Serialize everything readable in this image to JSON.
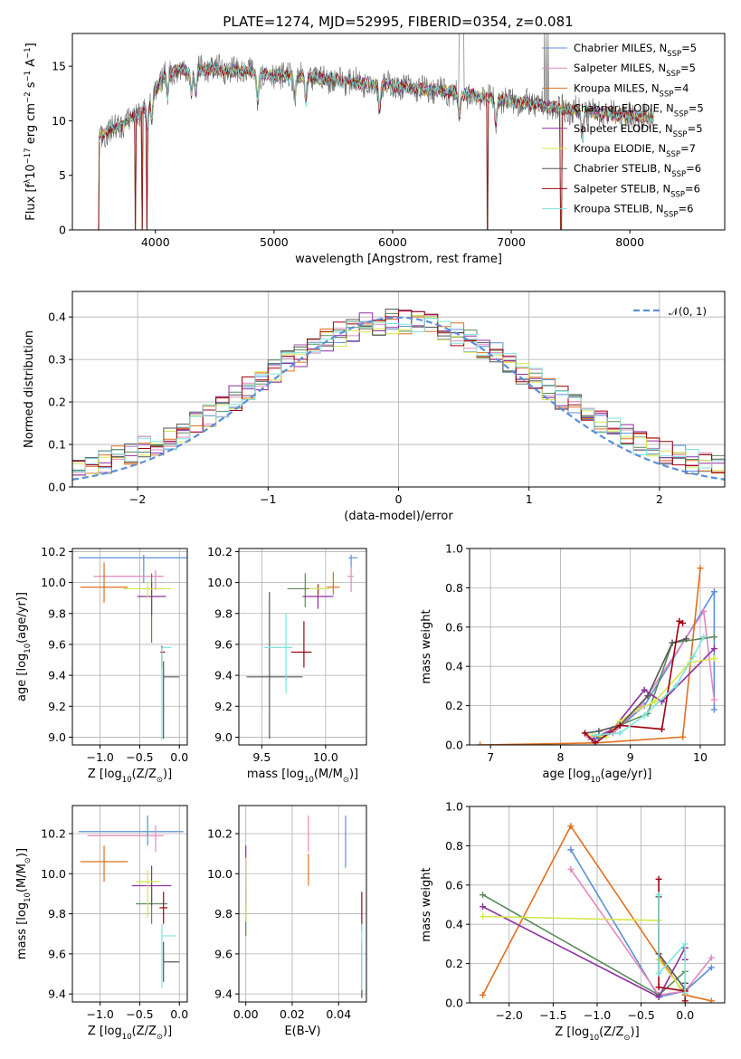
{
  "title": "PLATE=1274, MJD=52995, FIBERID=0354, z=0.081",
  "colors": {
    "Chabrier MILES": "#5b8fd9",
    "Salpeter MILES": "#e389bd",
    "Kroupa MILES": "#e0701e",
    "Chabrier ELODIE": "#5b8a5b",
    "Salpeter ELODIE": "#8e2ea3",
    "Kroupa ELODIE": "#d6e84a",
    "Chabrier STELIB": "#555555",
    "Salpeter STELIB": "#a00010",
    "Kroupa STELIB": "#7fe3dd"
  },
  "legend": [
    {
      "name": "Chabrier MILES",
      "n": "5"
    },
    {
      "name": "Salpeter MILES",
      "n": "5"
    },
    {
      "name": "Kroupa MILES",
      "n": "4"
    },
    {
      "name": "Chabrier ELODIE",
      "n": "5"
    },
    {
      "name": "Salpeter ELODIE",
      "n": "5"
    },
    {
      "name": "Kroupa ELODIE",
      "n": "7"
    },
    {
      "name": "Chabrier STELIB",
      "n": "6"
    },
    {
      "name": "Salpeter STELIB",
      "n": "6"
    },
    {
      "name": "Kroupa STELIB",
      "n": "6"
    }
  ],
  "chart_data": [
    {
      "type": "line",
      "id": "spectrum",
      "xlabel": "wavelength [Angstrom, rest frame]",
      "ylabel_parts": [
        "Flux [f",
        "λ",
        "10",
        "−17",
        " erg cm",
        "−2",
        " s",
        "−1",
        " A",
        "−1",
        "]"
      ],
      "xlim": [
        3300,
        8800
      ],
      "ylim": [
        0,
        18
      ],
      "xticks": [
        4000,
        5000,
        6000,
        7000,
        8000
      ],
      "yticks": [
        0,
        5,
        10,
        15
      ],
      "continuum": [
        [
          3500,
          8.5
        ],
        [
          3700,
          9.5
        ],
        [
          3900,
          11
        ],
        [
          4100,
          14.5
        ],
        [
          4500,
          14.8
        ],
        [
          5000,
          14.2
        ],
        [
          5500,
          13.8
        ],
        [
          6000,
          13.2
        ],
        [
          6500,
          12.6
        ],
        [
          7000,
          11.8
        ],
        [
          7500,
          11.0
        ],
        [
          8000,
          10.4
        ],
        [
          8200,
          10.2
        ]
      ],
      "absorption_lines": [
        3934,
        3969,
        4102,
        4304,
        4340,
        4861,
        5175,
        5270,
        5890,
        6563,
        6870,
        7600
      ],
      "flux_drops": [
        [
          3520,
          0
        ],
        [
          3830,
          0
        ],
        [
          3890,
          0
        ],
        [
          3930,
          0
        ],
        [
          6800,
          0
        ],
        [
          7420,
          0
        ]
      ],
      "emission_lines": [
        6565,
        6585
      ]
    },
    {
      "type": "histogram",
      "id": "residuals",
      "xlabel": "(data-model)/error",
      "ylabel": "Normed distribution",
      "xlim": [
        -2.5,
        2.5
      ],
      "ylim": [
        0,
        0.46
      ],
      "xticks": [
        -2,
        -1,
        0,
        1,
        2
      ],
      "yticks": [
        0.0,
        0.1,
        0.2,
        0.3,
        0.4
      ],
      "bin_width": 0.1,
      "reference_curve": "normal",
      "reference_label": "𝒩(0, 1)",
      "reference_color": "#5b8fd9"
    },
    {
      "type": "scatter",
      "id": "age-vs-z",
      "xlabel_parts": [
        "Z [log",
        "10",
        "(Z/Z",
        "⊙",
        ")]"
      ],
      "ylabel_parts": [
        "age  [log",
        "10",
        "(age/yr)]"
      ],
      "xlim": [
        -1.35,
        0.1
      ],
      "ylim": [
        8.95,
        10.22
      ],
      "xticks": [
        -1.0,
        -0.5,
        0.0
      ],
      "yticks": [
        9.0,
        9.2,
        9.4,
        9.6,
        9.8,
        10.0,
        10.2
      ],
      "points": [
        {
          "series": "Chabrier MILES",
          "x": -0.45,
          "y": 10.16,
          "xerr": [
            0.82,
            0.6
          ],
          "yerr": [
            0.16,
            0.02
          ]
        },
        {
          "series": "Salpeter MILES",
          "x": -0.3,
          "y": 10.04,
          "xerr": [
            0.78,
            0.1
          ],
          "yerr": [
            0.09,
            0.04
          ]
        },
        {
          "series": "Kroupa MILES",
          "x": -0.95,
          "y": 9.97,
          "xerr": [
            0.3,
            0.3
          ],
          "yerr": [
            0.1,
            0.16
          ]
        },
        {
          "series": "Chabrier ELODIE",
          "x": -0.35,
          "y": 9.96,
          "xerr": [
            0.15,
            0.15
          ],
          "yerr": [
            0.35,
            0.1
          ]
        },
        {
          "series": "Salpeter ELODIE",
          "x": -0.35,
          "y": 9.91,
          "xerr": [
            0.18,
            0.18
          ],
          "yerr": [
            0.12,
            0.09
          ]
        },
        {
          "series": "Kroupa ELODIE",
          "x": -0.4,
          "y": 9.96,
          "xerr": [
            0.3,
            0.3
          ],
          "yerr": [
            0.06,
            0.04
          ]
        },
        {
          "series": "Chabrier STELIB",
          "x": -0.2,
          "y": 9.39,
          "xerr": [
            0.0,
            0.2
          ],
          "yerr": [
            0.4,
            0.1
          ]
        },
        {
          "series": "Salpeter STELIB",
          "x": -0.22,
          "y": 9.55,
          "xerr": [
            0.02,
            0.04
          ],
          "yerr": [
            0.1,
            0.04
          ]
        },
        {
          "series": "Kroupa STELIB",
          "x": -0.22,
          "y": 9.58,
          "xerr": [
            0.0,
            0.12
          ],
          "yerr": [
            0.6,
            0.0
          ]
        }
      ]
    },
    {
      "type": "scatter",
      "id": "age-vs-mass",
      "xlabel_parts": [
        "mass [log",
        "10",
        "(M/M",
        "⊙",
        ")]"
      ],
      "xlim": [
        9.32,
        10.32
      ],
      "ylim": [
        8.95,
        10.22
      ],
      "xticks": [
        9.5,
        10.0
      ],
      "yticks": [
        9.0,
        9.2,
        9.4,
        9.6,
        9.8,
        10.0,
        10.2
      ],
      "points": [
        {
          "series": "Chabrier MILES",
          "x": 10.2,
          "y": 10.16,
          "xerr": [
            0.02,
            0.05
          ],
          "yerr": [
            0.06,
            0.02
          ]
        },
        {
          "series": "Salpeter MILES",
          "x": 10.2,
          "y": 10.04,
          "xerr": [
            0.03,
            0.02
          ],
          "yerr": [
            0.1,
            0.06
          ]
        },
        {
          "series": "Kroupa MILES",
          "x": 10.06,
          "y": 9.97,
          "xerr": [
            0.05,
            0.05
          ],
          "yerr": [
            0.05,
            0.1
          ]
        },
        {
          "series": "Chabrier ELODIE",
          "x": 9.84,
          "y": 9.96,
          "xerr": [
            0.14,
            0.14
          ],
          "yerr": [
            0.12,
            0.1
          ]
        },
        {
          "series": "Salpeter ELODIE",
          "x": 9.94,
          "y": 9.91,
          "xerr": [
            0.12,
            0.12
          ],
          "yerr": [
            0.08,
            0.08
          ]
        },
        {
          "series": "Kroupa ELODIE",
          "x": 9.95,
          "y": 9.96,
          "xerr": [
            0.08,
            0.08
          ],
          "yerr": [
            0.04,
            0.03
          ]
        },
        {
          "series": "Chabrier STELIB",
          "x": 9.56,
          "y": 9.39,
          "xerr": [
            0.18,
            0.26
          ],
          "yerr": [
            0.4,
            0.55
          ]
        },
        {
          "series": "Salpeter STELIB",
          "x": 9.83,
          "y": 9.55,
          "xerr": [
            0.1,
            0.06
          ],
          "yerr": [
            0.1,
            0.2
          ]
        },
        {
          "series": "Kroupa STELIB",
          "x": 9.69,
          "y": 9.58,
          "xerr": [
            0.17,
            0.05
          ],
          "yerr": [
            0.3,
            0.22
          ]
        }
      ]
    },
    {
      "type": "line",
      "id": "weight-vs-age",
      "xlabel_parts": [
        "age  [log",
        "10",
        "(age/yr)]"
      ],
      "ylabel": "mass weight",
      "xlim": [
        6.7,
        10.35
      ],
      "ylim": [
        0,
        1.0
      ],
      "xticks": [
        7,
        8,
        9,
        10
      ],
      "yticks": [
        0.0,
        0.2,
        0.4,
        0.6,
        0.8,
        1.0
      ],
      "series": [
        {
          "name": "Chabrier MILES",
          "x": [
            8.5,
            8.75,
            9.2,
            10.2,
            10.2
          ],
          "y": [
            0.03,
            0.06,
            0.2,
            0.78,
            0.18
          ]
        },
        {
          "name": "Salpeter MILES",
          "x": [
            8.4,
            8.75,
            9.15,
            10.05,
            10.2
          ],
          "y": [
            0.04,
            0.06,
            0.2,
            0.68,
            0.23
          ]
        },
        {
          "name": "Kroupa MILES",
          "x": [
            6.85,
            8.5,
            9.75,
            10.0
          ],
          "y": [
            0.0,
            0.01,
            0.04,
            0.9
          ]
        },
        {
          "name": "Chabrier ELODIE",
          "x": [
            8.55,
            8.85,
            9.25,
            9.6,
            10.2
          ],
          "y": [
            0.04,
            0.1,
            0.16,
            0.52,
            0.55
          ]
        },
        {
          "name": "Salpeter ELODIE",
          "x": [
            8.45,
            8.75,
            9.2,
            9.45,
            10.2
          ],
          "y": [
            0.03,
            0.08,
            0.28,
            0.22,
            0.49
          ]
        },
        {
          "name": "Kroupa ELODIE",
          "x": [
            8.45,
            8.65,
            8.85,
            9.1,
            9.35,
            9.85,
            10.2
          ],
          "y": [
            0.05,
            0.04,
            0.12,
            0.18,
            0.22,
            0.42,
            0.44
          ]
        },
        {
          "name": "Chabrier STELIB",
          "x": [
            8.35,
            8.55,
            8.85,
            9.25,
            9.6,
            9.8
          ],
          "y": [
            0.06,
            0.07,
            0.1,
            0.25,
            0.52,
            0.54
          ]
        },
        {
          "name": "Salpeter STELIB",
          "x": [
            8.35,
            8.5,
            8.85,
            9.45,
            9.7,
            9.75
          ],
          "y": [
            0.06,
            0.01,
            0.1,
            0.08,
            0.63,
            0.62
          ]
        },
        {
          "name": "Kroupa STELIB",
          "x": [
            8.5,
            8.85,
            9.2,
            9.65,
            9.9,
            10.05
          ],
          "y": [
            0.05,
            0.06,
            0.15,
            0.3,
            0.45,
            0.55
          ]
        }
      ]
    },
    {
      "type": "scatter",
      "id": "mass-vs-z",
      "xlabel_parts": [
        "Z [log",
        "10",
        "(Z/Z",
        "⊙",
        ")]"
      ],
      "ylabel_parts": [
        "mass [log",
        "10",
        "(M/M",
        "⊙",
        ")]"
      ],
      "xlim": [
        -1.35,
        0.1
      ],
      "ylim": [
        9.36,
        10.34
      ],
      "xticks": [
        -1.0,
        -0.5,
        0.0
      ],
      "yticks": [
        9.4,
        9.6,
        9.8,
        10.0,
        10.2
      ],
      "points": [
        {
          "series": "Chabrier MILES",
          "x": -0.4,
          "y": 10.21,
          "xerr": [
            0.87,
            0.45
          ],
          "yerr": [
            0.07,
            0.08
          ]
        },
        {
          "series": "Salpeter MILES",
          "x": -0.3,
          "y": 10.19,
          "xerr": [
            0.86,
            0.1
          ],
          "yerr": [
            0.08,
            0.05
          ]
        },
        {
          "series": "Kroupa MILES",
          "x": -0.95,
          "y": 10.06,
          "xerr": [
            0.3,
            0.3
          ],
          "yerr": [
            0.1,
            0.08
          ]
        },
        {
          "series": "Chabrier ELODIE",
          "x": -0.35,
          "y": 9.85,
          "xerr": [
            0.2,
            0.2
          ],
          "yerr": [
            0.1,
            0.1
          ]
        },
        {
          "series": "Salpeter ELODIE",
          "x": -0.35,
          "y": 9.94,
          "xerr": [
            0.25,
            0.25
          ],
          "yerr": [
            0.1,
            0.1
          ]
        },
        {
          "series": "Kroupa ELODIE",
          "x": -0.4,
          "y": 9.96,
          "xerr": [
            0.15,
            0.15
          ],
          "yerr": [
            0.18,
            0.06
          ]
        },
        {
          "series": "Chabrier STELIB",
          "x": -0.2,
          "y": 9.56,
          "xerr": [
            0.0,
            0.2
          ],
          "yerr": [
            0.1,
            0.1
          ]
        },
        {
          "series": "Salpeter STELIB",
          "x": -0.2,
          "y": 9.83,
          "xerr": [
            0.05,
            0.05
          ],
          "yerr": [
            0.08,
            0.08
          ]
        },
        {
          "series": "Kroupa STELIB",
          "x": -0.22,
          "y": 9.69,
          "xerr": [
            0.0,
            0.18
          ],
          "yerr": [
            0.26,
            0.06
          ]
        }
      ]
    },
    {
      "type": "scatter",
      "id": "mass-vs-ebv",
      "xlabel": "E(B-V)",
      "xlim": [
        -0.003,
        0.052
      ],
      "ylim": [
        9.36,
        10.34
      ],
      "xticks": [
        0.0,
        0.02,
        0.04
      ],
      "yticks": [
        9.4,
        9.6,
        9.8,
        10.0,
        10.2
      ],
      "points": [
        {
          "series": "Chabrier MILES",
          "x": 0.043,
          "y": 10.21,
          "yerr": [
            0.18,
            0.08
          ]
        },
        {
          "series": "Salpeter MILES",
          "x": 0.027,
          "y": 10.19,
          "yerr": [
            0.08,
            0.1
          ]
        },
        {
          "series": "Kroupa MILES",
          "x": 0.027,
          "y": 10.06,
          "yerr": [
            0.12,
            0.04
          ]
        },
        {
          "series": "Chabrier ELODIE",
          "x": 0.0,
          "y": 9.85,
          "yerr": [
            0.16,
            0.1
          ]
        },
        {
          "series": "Salpeter ELODIE",
          "x": 0.0,
          "y": 9.94,
          "yerr": [
            0.1,
            0.2
          ]
        },
        {
          "series": "Kroupa ELODIE",
          "x": 0.0,
          "y": 9.96,
          "yerr": [
            0.2,
            0.12
          ]
        },
        {
          "series": "Chabrier STELIB",
          "x": 0.05,
          "y": 9.56,
          "yerr": [
            0.18,
            0.1
          ]
        },
        {
          "series": "Salpeter STELIB",
          "x": 0.05,
          "y": 9.83,
          "yerr": [
            0.12,
            0.08
          ]
        },
        {
          "series": "Kroupa STELIB",
          "x": 0.05,
          "y": 9.69,
          "yerr": [
            0.27,
            0.06
          ]
        }
      ]
    },
    {
      "type": "line",
      "id": "weight-vs-z",
      "xlabel_parts": [
        "Z [log",
        "10",
        "(Z/Z",
        "⊙",
        ")]"
      ],
      "ylabel": "mass weight",
      "xlim": [
        -2.45,
        0.45
      ],
      "ylim": [
        0,
        1.0
      ],
      "xticks": [
        -2.0,
        -1.5,
        -1.0,
        -0.5,
        0.0
      ],
      "yticks": [
        0.0,
        0.2,
        0.4,
        0.6,
        0.8,
        1.0
      ],
      "series": [
        {
          "name": "Chabrier MILES",
          "x": [
            -1.3,
            -0.3,
            0.0,
            0.3
          ],
          "y": [
            0.78,
            0.03,
            0.06,
            0.18
          ]
        },
        {
          "name": "Salpeter MILES",
          "x": [
            -1.3,
            -0.3,
            0.0,
            0.3
          ],
          "y": [
            0.68,
            0.04,
            0.06,
            0.23
          ]
        },
        {
          "name": "Kroupa MILES",
          "x": [
            -2.3,
            -1.3,
            0.0,
            0.3
          ],
          "y": [
            0.04,
            0.9,
            0.04,
            0.01
          ]
        },
        {
          "name": "Chabrier ELODIE",
          "x": [
            -2.3,
            -0.3,
            0.0,
            0.0
          ],
          "y": [
            0.55,
            0.04,
            0.16,
            0.1
          ]
        },
        {
          "name": "Salpeter ELODIE",
          "x": [
            -2.3,
            -0.3,
            0.0,
            0.0
          ],
          "y": [
            0.49,
            0.03,
            0.28,
            0.22
          ]
        },
        {
          "name": "Kroupa ELODIE",
          "x": [
            -2.3,
            -0.3,
            -0.3,
            0.0
          ],
          "y": [
            0.44,
            0.42,
            0.22,
            0.05
          ]
        },
        {
          "name": "Chabrier STELIB",
          "x": [
            -0.3,
            -0.3,
            0.0,
            0.0
          ],
          "y": [
            0.54,
            0.25,
            0.07,
            0.1
          ]
        },
        {
          "name": "Salpeter STELIB",
          "x": [
            -0.3,
            -0.3,
            0.0,
            0.0
          ],
          "y": [
            0.63,
            0.08,
            0.06,
            0.01
          ]
        },
        {
          "name": "Kroupa STELIB",
          "x": [
            -0.3,
            -0.3,
            0.0,
            0.0
          ],
          "y": [
            0.55,
            0.15,
            0.3,
            0.05
          ]
        }
      ]
    }
  ]
}
